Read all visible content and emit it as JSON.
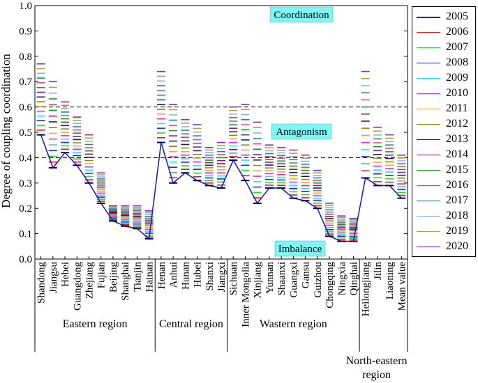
{
  "chart_data": {
    "type": "line",
    "ylabel": "Degree of coupling coordination",
    "ylim": [
      0,
      1.0
    ],
    "yticks": [
      "0.0",
      "0.1",
      "0.2",
      "0.3",
      "0.4",
      "0.5",
      "0.6",
      "0.7",
      "0.8",
      "0.9",
      "1.0"
    ],
    "reference_lines": [
      0.6,
      0.4
    ],
    "zones": [
      {
        "label": "Coordination",
        "y": 0.96
      },
      {
        "label": "Antagonism",
        "y": 0.505
      },
      {
        "label": "Imbalance",
        "y": 0.04
      }
    ],
    "categories": [
      "Shandong",
      "Jiangsu",
      "Hebei",
      "Guangdong",
      "Zhejiang",
      "Fujian",
      "Beijing",
      "Shanghai",
      "Tianjin",
      "Hainan",
      "Henan",
      "Anhui",
      "Hunan",
      "Hubei",
      "Shanxi",
      "Jiangxi",
      "Sichuan",
      "Inner Mongolia",
      "Xinjiang",
      "Yunnan",
      "Shaanxi",
      "Guangxi",
      "Gansu",
      "Guizhou",
      "Chongqing",
      "Ningxia",
      "Qinghai",
      "Heilongjiang",
      "Jilin",
      "Liaoning",
      "Mean value"
    ],
    "regions": [
      {
        "name": "Eastern region",
        "start": 0,
        "end": 9
      },
      {
        "name": "Central region",
        "start": 10,
        "end": 15
      },
      {
        "name": "Wastern region",
        "start": 16,
        "end": 26
      },
      {
        "name": "North-eastern region",
        "start": 27,
        "end": 30
      }
    ],
    "series_2005": {
      "name": "2005",
      "values": [
        0.49,
        0.36,
        0.42,
        0.37,
        0.3,
        0.22,
        0.15,
        0.13,
        0.12,
        0.08,
        0.46,
        0.3,
        0.34,
        0.31,
        0.29,
        0.28,
        0.39,
        0.31,
        0.22,
        0.28,
        0.28,
        0.24,
        0.23,
        0.2,
        0.09,
        0.07,
        0.07,
        0.32,
        0.29,
        0.29,
        0.24
      ]
    },
    "year_range_max": [
      0.77,
      0.7,
      0.62,
      0.56,
      0.49,
      0.34,
      0.21,
      0.21,
      0.21,
      0.19,
      0.74,
      0.61,
      0.55,
      0.53,
      0.44,
      0.46,
      0.6,
      0.61,
      0.54,
      0.45,
      0.44,
      0.43,
      0.41,
      0.35,
      0.22,
      0.17,
      0.16,
      0.74,
      0.52,
      0.49,
      0.41
    ],
    "legend": [
      {
        "year": "2005",
        "color": "#1f1fbf"
      },
      {
        "year": "2006",
        "color": "#e41a1c"
      },
      {
        "year": "2007",
        "color": "#22dd22"
      },
      {
        "year": "2008",
        "color": "#2525e0"
      },
      {
        "year": "2009",
        "color": "#22e6f0"
      },
      {
        "year": "2010",
        "color": "#f020e8"
      },
      {
        "year": "2011",
        "color": "#f0a040"
      },
      {
        "year": "2012",
        "color": "#8a8a10"
      },
      {
        "year": "2013",
        "color": "#1a1a7a"
      },
      {
        "year": "2014",
        "color": "#8e1a8e"
      },
      {
        "year": "2015",
        "color": "#1a9a1a"
      },
      {
        "year": "2016",
        "color": "#f0408a"
      },
      {
        "year": "2017",
        "color": "#1a8a8a"
      },
      {
        "year": "2018",
        "color": "#8ab0e6"
      },
      {
        "year": "2019",
        "color": "#b0a040"
      },
      {
        "year": "2020",
        "color": "#7a2ad8"
      }
    ]
  }
}
